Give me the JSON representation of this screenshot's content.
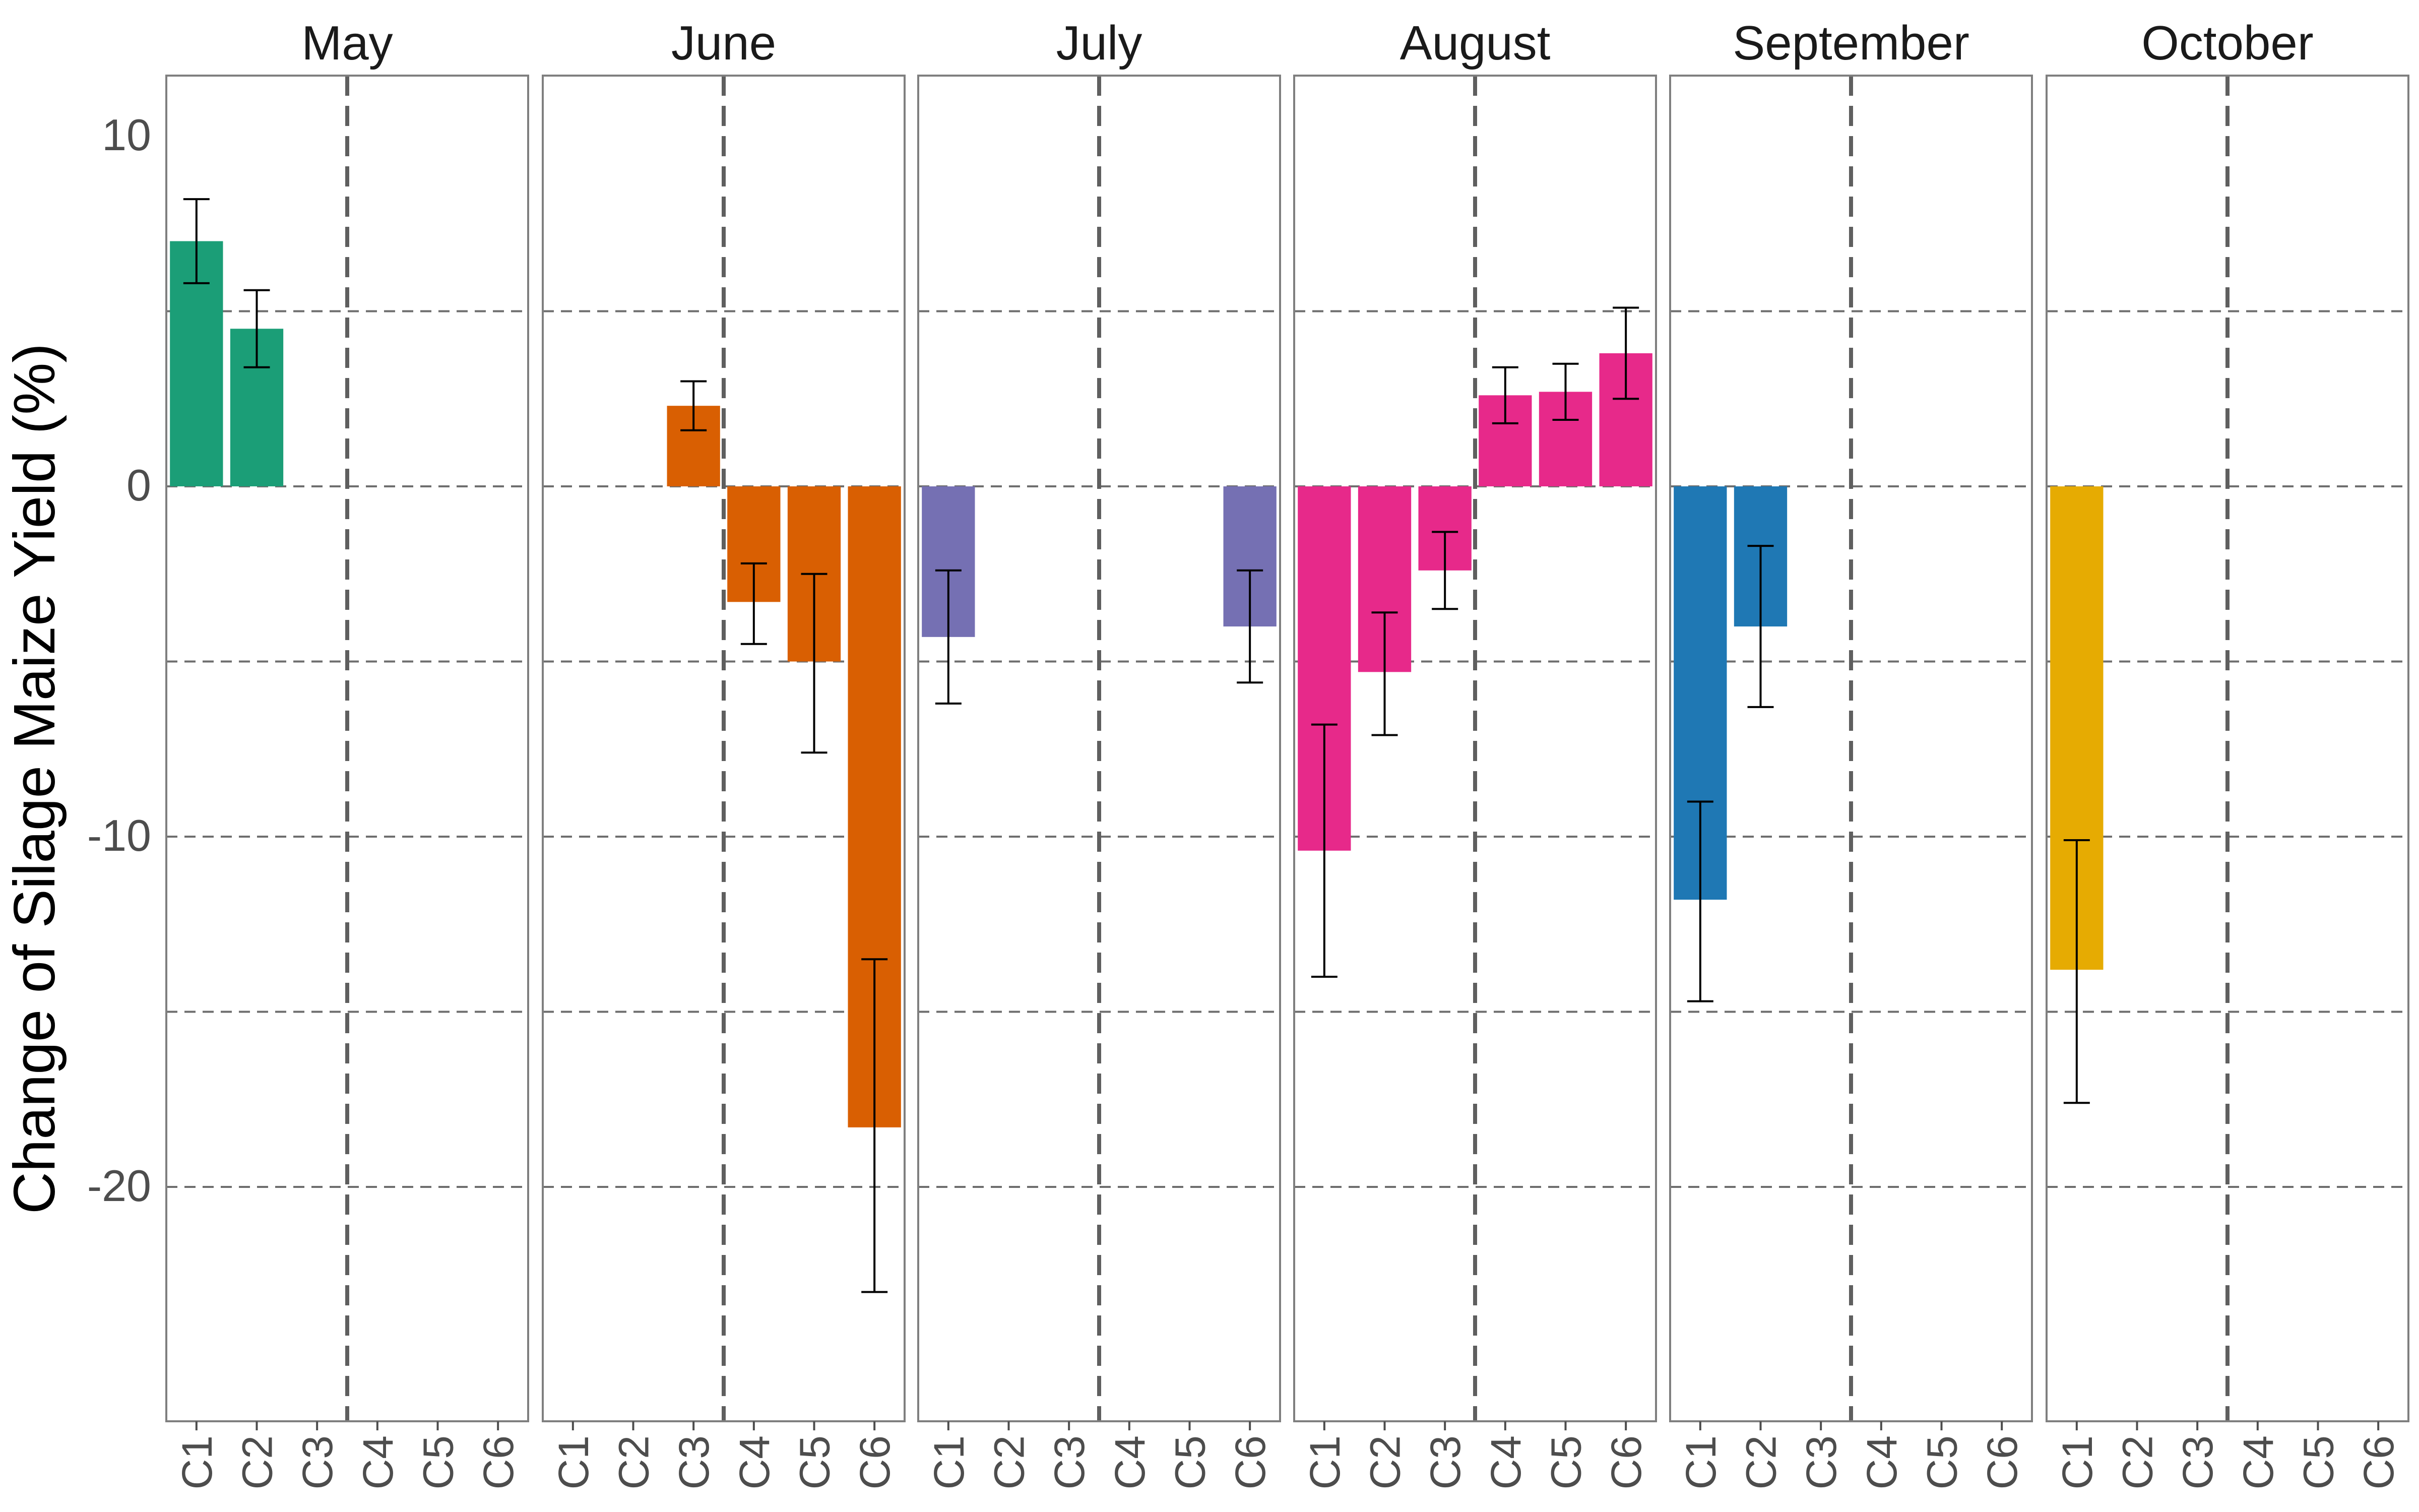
{
  "chart_data": {
    "type": "bar",
    "title": "",
    "xlabel": "",
    "ylabel": "Change of Silage Maize Yield (%)",
    "ylim": [
      -26.5,
      10.8
    ],
    "yticks": [
      10,
      0,
      -10,
      -20
    ],
    "yticks_labels": [
      "10",
      "0",
      "-10",
      "-20"
    ],
    "gridlines_y": [
      5,
      0,
      -5,
      -10,
      -15,
      -20
    ],
    "grid": true,
    "facet_divider_between": [
      "C3",
      "C4"
    ],
    "categories": [
      "C1",
      "C2",
      "C3",
      "C4",
      "C5",
      "C6"
    ],
    "legend": "none",
    "panels": [
      {
        "title": "May",
        "color": "#1b9e77",
        "values": [
          7.0,
          4.5,
          null,
          null,
          null,
          null
        ],
        "err_low": [
          5.8,
          3.4,
          null,
          null,
          null,
          null
        ],
        "err_high": [
          8.2,
          5.6,
          null,
          null,
          null,
          null
        ]
      },
      {
        "title": "June",
        "color": "#d95f02",
        "values": [
          null,
          null,
          2.3,
          -3.3,
          -5.0,
          -18.3
        ],
        "err_low": [
          null,
          null,
          1.6,
          -4.5,
          -7.6,
          -23.0
        ],
        "err_high": [
          null,
          null,
          3.0,
          -2.2,
          -2.5,
          -13.5
        ]
      },
      {
        "title": "July",
        "color": "#7570b3",
        "values": [
          -4.3,
          null,
          null,
          null,
          null,
          -4.0
        ],
        "err_low": [
          -6.2,
          null,
          null,
          null,
          null,
          -5.6
        ],
        "err_high": [
          -2.4,
          null,
          null,
          null,
          null,
          -2.4
        ]
      },
      {
        "title": "August",
        "color": "#e7298a",
        "values": [
          -10.4,
          -5.3,
          -2.4,
          2.6,
          2.7,
          3.8
        ],
        "err_low": [
          -14.0,
          -7.1,
          -3.5,
          1.8,
          1.9,
          2.5
        ],
        "err_high": [
          -6.8,
          -3.6,
          -1.3,
          3.4,
          3.5,
          5.1
        ]
      },
      {
        "title": "September",
        "color": "#1f78b4",
        "values": [
          -11.8,
          -4.0,
          null,
          null,
          null,
          null
        ],
        "err_low": [
          -14.7,
          -6.3,
          null,
          null,
          null,
          null
        ],
        "err_high": [
          -9.0,
          -1.7,
          null,
          null,
          null,
          null
        ]
      },
      {
        "title": "October",
        "color": "#e6ab02",
        "values": [
          -13.8,
          null,
          null,
          null,
          null,
          null
        ],
        "err_low": [
          -17.6,
          null,
          null,
          null,
          null,
          null
        ],
        "err_high": [
          -10.1,
          null,
          null,
          null,
          null,
          null
        ]
      }
    ]
  }
}
